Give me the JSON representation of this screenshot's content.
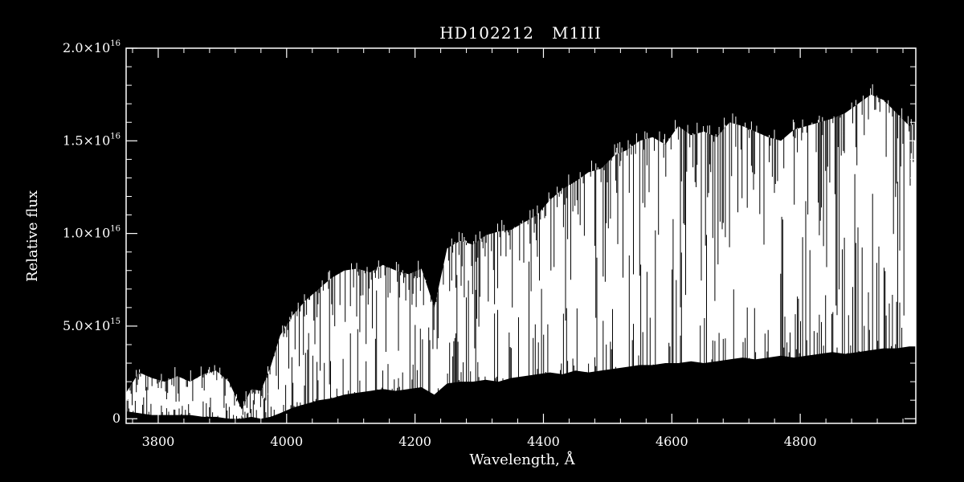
{
  "chart_data": {
    "type": "line",
    "title": "HD102212   M1III",
    "xlabel": "Wavelength, Å",
    "ylabel": "Relative flux",
    "xlim": [
      3750,
      4980
    ],
    "ylim": [
      -250000000000000.0,
      2e+16
    ],
    "xticks": [
      3800,
      4000,
      4200,
      4400,
      4600,
      4800
    ],
    "xtick_labels": [
      "3800",
      "4000",
      "4200",
      "4400",
      "4600",
      "4800"
    ],
    "yticks": [
      {
        "value": 0,
        "mantissa": "0",
        "exp": ""
      },
      {
        "value": 5000000000000000.0,
        "mantissa": "5.0×10",
        "exp": "15"
      },
      {
        "value": 1e+16,
        "mantissa": "1.0×10",
        "exp": "16"
      },
      {
        "value": 1.5e+16,
        "mantissa": "1.5×10",
        "exp": "16"
      },
      {
        "value": 2e+16,
        "mantissa": "2.0×10",
        "exp": "16"
      }
    ],
    "grid": false,
    "legend": "none",
    "colors": {
      "background": "#000000",
      "foreground": "#ffffff"
    },
    "series": [
      {
        "x": [
          3750,
          3770,
          3790,
          3810,
          3830,
          3850,
          3870,
          3890,
          3910,
          3930,
          3945,
          3960,
          3975,
          3990,
          4010,
          4030,
          4050,
          4070,
          4090,
          4110,
          4130,
          4150,
          4170,
          4190,
          4210,
          4230,
          4250,
          4270,
          4290,
          4310,
          4330,
          4350,
          4370,
          4390,
          4410,
          4430,
          4450,
          4470,
          4490,
          4510,
          4530,
          4550,
          4570,
          4590,
          4610,
          4630,
          4650,
          4670,
          4690,
          4710,
          4730,
          4750,
          4770,
          4790,
          4810,
          4830,
          4850,
          4870,
          4890,
          4910,
          4930,
          4950,
          4970,
          4980
        ],
        "y_upper": [
          1400000000000000.0,
          2500000000000000.0,
          2200000000000000.0,
          2000000000000000.0,
          2300000000000000.0,
          2000000000000000.0,
          2400000000000000.0,
          2600000000000000.0,
          2000000000000000.0,
          500000000000000.0,
          1600000000000000.0,
          1500000000000000.0,
          2800000000000000.0,
          4500000000000000.0,
          5600000000000000.0,
          6400000000000000.0,
          7000000000000000.0,
          7600000000000000.0,
          8000000000000000.0,
          8100000000000000.0,
          7900000000000000.0,
          8300000000000000.0,
          8000000000000000.0,
          7800000000000000.0,
          8100000000000000.0,
          6000000000000000.0,
          9200000000000000.0,
          9600000000000000.0,
          9400000000000000.0,
          9900000000000000.0,
          1.01e+16,
          1.02e+16,
          1.06e+16,
          1.1e+16,
          1.18e+16,
          1.24e+16,
          1.28e+16,
          1.33e+16,
          1.35e+16,
          1.42e+16,
          1.45e+16,
          1.5e+16,
          1.52e+16,
          1.48e+16,
          1.58e+16,
          1.53e+16,
          1.55e+16,
          1.52e+16,
          1.6e+16,
          1.58e+16,
          1.55e+16,
          1.52e+16,
          1.5e+16,
          1.56e+16,
          1.58e+16,
          1.6e+16,
          1.62e+16,
          1.65e+16,
          1.7e+16,
          1.75e+16,
          1.72e+16,
          1.65e+16,
          1.58e+16,
          1.6e+16
        ],
        "y_lower": [
          400000000000000.0,
          300000000000000.0,
          200000000000000.0,
          200000000000000.0,
          200000000000000.0,
          200000000000000.0,
          100000000000000.0,
          100000000000000.0,
          0.0,
          0.0,
          100000000000000.0,
          0.0,
          100000000000000.0,
          300000000000000.0,
          600000000000000.0,
          800000000000000.0,
          1000000000000000.0,
          1100000000000000.0,
          1300000000000000.0,
          1400000000000000.0,
          1500000000000000.0,
          1600000000000000.0,
          1500000000000000.0,
          1600000000000000.0,
          1700000000000000.0,
          1300000000000000.0,
          1900000000000000.0,
          2000000000000000.0,
          2000000000000000.0,
          2100000000000000.0,
          2000000000000000.0,
          2200000000000000.0,
          2300000000000000.0,
          2400000000000000.0,
          2500000000000000.0,
          2400000000000000.0,
          2600000000000000.0,
          2500000000000000.0,
          2600000000000000.0,
          2700000000000000.0,
          2800000000000000.0,
          2900000000000000.0,
          2900000000000000.0,
          3000000000000000.0,
          3000000000000000.0,
          3100000000000000.0,
          3000000000000000.0,
          3100000000000000.0,
          3200000000000000.0,
          3300000000000000.0,
          3200000000000000.0,
          3300000000000000.0,
          3400000000000000.0,
          3300000000000000.0,
          3400000000000000.0,
          3500000000000000.0,
          3600000000000000.0,
          3500000000000000.0,
          3600000000000000.0,
          3700000000000000.0,
          3800000000000000.0,
          3800000000000000.0,
          3900000000000000.0,
          3900000000000000.0
        ]
      }
    ]
  }
}
